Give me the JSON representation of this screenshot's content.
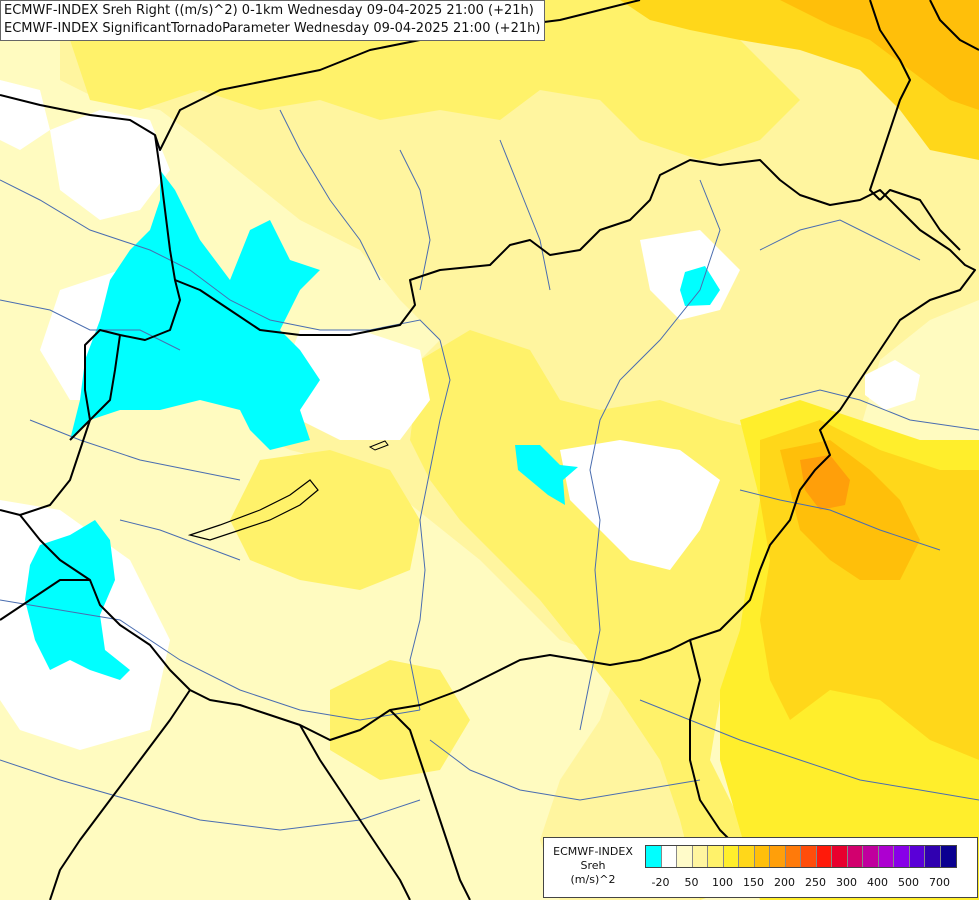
{
  "header": {
    "title_line_1": "ECMWF-INDEX Sreh Right ((m/s)^2) 0-1km Wednesday 09-04-2025 21:00 (+21h)",
    "title_line_2": "ECMWF-INDEX SignificantTornadoParameter Wednesday 09-04-2025 21:00 (+21h)"
  },
  "legend": {
    "line_1": "ECMWF-INDEX",
    "line_2": "Sreh",
    "line_3": "(m/s)^2",
    "colors": [
      "#00ffff",
      "#ffffff",
      "#fffbc9",
      "#fff59f",
      "#fff26a",
      "#ffee2c",
      "#ffd71a",
      "#ffbf0a",
      "#ff9f0a",
      "#ff7a0a",
      "#ff4d0a",
      "#ff1a0a",
      "#e8002e",
      "#d2006e",
      "#c0009e",
      "#ad00d0",
      "#8800e8",
      "#5a00d8",
      "#3000b0",
      "#0a0090"
    ],
    "ticks": [
      "-20",
      "50",
      "100",
      "150",
      "200",
      "250",
      "300",
      "400",
      "500",
      "700"
    ]
  },
  "map": {
    "fill_colors": {
      "background": "#fffbc0",
      "light_yellow": "#fff59f",
      "yellow": "#fff26a",
      "bright_yellow": "#ffee2c",
      "gold": "#ffd71a",
      "orange": "#ffbf0a",
      "dark_orange": "#ff9f0a",
      "cyan": "#00ffff",
      "white": "#ffffff"
    },
    "line_colors": {
      "border": "#000000",
      "river": "#4a6db0"
    }
  }
}
